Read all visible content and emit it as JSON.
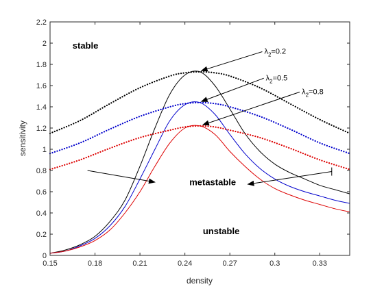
{
  "chart_data": {
    "type": "line",
    "title": "",
    "xlabel": "density",
    "ylabel": "sensitivity",
    "xlim": [
      0.15,
      0.35
    ],
    "ylim": [
      0,
      2.2
    ],
    "grid": false,
    "x_ticks": [
      0.15,
      0.18,
      0.21,
      0.24,
      0.27,
      0.3,
      0.33
    ],
    "x_tick_labels": [
      "0.15",
      "0.18",
      "0.21",
      "0.24",
      "0.27",
      "0.3",
      "0.33"
    ],
    "y_ticks": [
      0,
      0.2,
      0.4,
      0.6,
      0.8,
      1,
      1.2,
      1.4,
      1.6,
      1.8,
      2,
      2.2
    ],
    "y_tick_labels": [
      "0",
      "0.2",
      "0.4",
      "0.6",
      "0.8",
      "1",
      "1.2",
      "1.4",
      "1.6",
      "1.8",
      "2",
      "2.2"
    ],
    "series": [
      {
        "name": "λ2=0.2",
        "color": "#000000",
        "style": "solid",
        "x": [
          0.15,
          0.16,
          0.17,
          0.18,
          0.19,
          0.2,
          0.21,
          0.22,
          0.23,
          0.24,
          0.25,
          0.26,
          0.27,
          0.28,
          0.29,
          0.3,
          0.31,
          0.32,
          0.33,
          0.34,
          0.35
        ],
        "y": [
          0.02,
          0.05,
          0.1,
          0.18,
          0.32,
          0.52,
          0.84,
          1.2,
          1.52,
          1.7,
          1.73,
          1.6,
          1.38,
          1.15,
          0.98,
          0.86,
          0.78,
          0.72,
          0.66,
          0.62,
          0.58
        ]
      },
      {
        "name": "",
        "color": "#000000",
        "style": "dotted",
        "x": [
          0.15,
          0.17,
          0.19,
          0.21,
          0.23,
          0.24,
          0.25,
          0.26,
          0.27,
          0.29,
          0.31,
          0.33,
          0.35
        ],
        "y": [
          1.15,
          1.27,
          1.43,
          1.58,
          1.69,
          1.72,
          1.73,
          1.72,
          1.69,
          1.58,
          1.43,
          1.28,
          1.15
        ]
      },
      {
        "name": "λ2=0.5",
        "color": "#0000cc",
        "style": "solid",
        "x": [
          0.15,
          0.16,
          0.17,
          0.18,
          0.19,
          0.2,
          0.21,
          0.22,
          0.23,
          0.24,
          0.25,
          0.26,
          0.27,
          0.28,
          0.29,
          0.3,
          0.31,
          0.32,
          0.33,
          0.34,
          0.35
        ],
        "y": [
          0.02,
          0.04,
          0.09,
          0.16,
          0.28,
          0.46,
          0.72,
          1.0,
          1.27,
          1.42,
          1.44,
          1.33,
          1.14,
          0.96,
          0.82,
          0.72,
          0.65,
          0.6,
          0.56,
          0.52,
          0.49
        ]
      },
      {
        "name": "",
        "color": "#0000cc",
        "style": "dotted",
        "x": [
          0.15,
          0.17,
          0.19,
          0.21,
          0.23,
          0.24,
          0.25,
          0.26,
          0.27,
          0.29,
          0.31,
          0.33,
          0.35
        ],
        "y": [
          0.96,
          1.06,
          1.19,
          1.31,
          1.4,
          1.43,
          1.44,
          1.43,
          1.4,
          1.31,
          1.19,
          1.06,
          0.96
        ]
      },
      {
        "name": "λ2=0.8",
        "color": "#dd0000",
        "style": "solid",
        "x": [
          0.15,
          0.16,
          0.17,
          0.18,
          0.19,
          0.2,
          0.21,
          0.22,
          0.23,
          0.24,
          0.25,
          0.26,
          0.27,
          0.28,
          0.29,
          0.3,
          0.31,
          0.32,
          0.33,
          0.34,
          0.35
        ],
        "y": [
          0.02,
          0.04,
          0.08,
          0.14,
          0.24,
          0.4,
          0.6,
          0.84,
          1.06,
          1.2,
          1.22,
          1.14,
          0.98,
          0.84,
          0.72,
          0.63,
          0.57,
          0.52,
          0.48,
          0.44,
          0.41
        ]
      },
      {
        "name": "",
        "color": "#dd0000",
        "style": "dotted",
        "x": [
          0.15,
          0.17,
          0.19,
          0.21,
          0.23,
          0.24,
          0.25,
          0.26,
          0.27,
          0.29,
          0.31,
          0.33,
          0.35
        ],
        "y": [
          0.81,
          0.9,
          1.01,
          1.11,
          1.18,
          1.21,
          1.22,
          1.21,
          1.18,
          1.11,
          1.01,
          0.9,
          0.81
        ]
      }
    ],
    "annotations": [
      {
        "text": "stable",
        "style": "bold",
        "x": 0.165,
        "y": 1.95
      },
      {
        "text": "metastable",
        "style": "bold",
        "x": 0.243,
        "y": 0.66
      },
      {
        "text": "unstable",
        "style": "bold",
        "x": 0.252,
        "y": 0.2
      },
      {
        "text": "λ2=0.2",
        "base": "λ",
        "sub": "2",
        "rest": "=0.2",
        "x": 0.293,
        "y": 1.9,
        "arrow_to": [
          0.251,
          1.74
        ]
      },
      {
        "text": "λ2=0.5",
        "base": "λ",
        "sub": "2",
        "rest": "=0.5",
        "x": 0.294,
        "y": 1.65,
        "arrow_to": [
          0.251,
          1.45
        ]
      },
      {
        "text": "λ2=0.8",
        "base": "λ",
        "sub": "2",
        "rest": "=0.8",
        "x": 0.318,
        "y": 1.52,
        "arrow_to": [
          0.252,
          1.23
        ]
      }
    ],
    "arrows": [
      {
        "from": [
          0.175,
          0.8
        ],
        "to": [
          0.22,
          0.69
        ]
      },
      {
        "from": [
          0.338,
          0.79
        ],
        "to": [
          0.282,
          0.67
        ]
      }
    ]
  }
}
